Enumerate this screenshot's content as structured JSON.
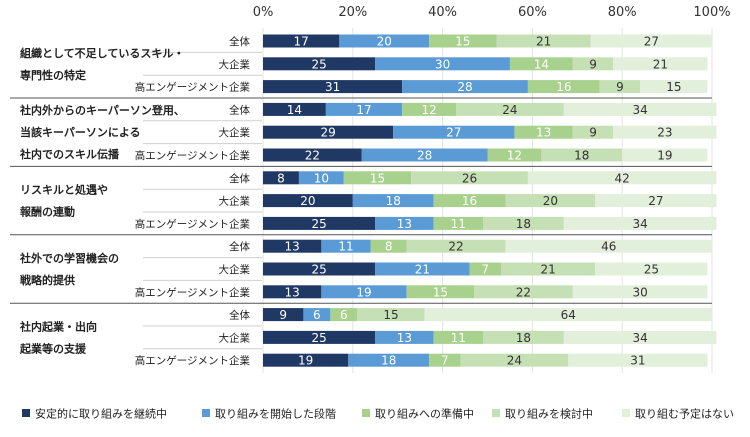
{
  "chart_data": {
    "type": "bar",
    "orientation": "horizontal",
    "stacked": true,
    "xlim": [
      0,
      100
    ],
    "x_ticks": [
      "0%",
      "20%",
      "40%",
      "60%",
      "80%",
      "100%"
    ],
    "legend_position": "bottom",
    "series": [
      {
        "name": "安定的に取り組みを継続中",
        "color": "#1f3864",
        "label_color": "#ffffff"
      },
      {
        "name": "取り組みを開始した段階",
        "color": "#5b9bd5",
        "label_color": "#ffffff"
      },
      {
        "name": "取り組みへの準備中",
        "color": "#a9d18e",
        "label_color": "#ffffff"
      },
      {
        "name": "取り組みを検討中",
        "color": "#c5e0b4",
        "label_color": "#333333"
      },
      {
        "name": "取り組む予定はない",
        "color": "#e2efda",
        "label_color": "#333333"
      }
    ],
    "groups": [
      {
        "label_lines": [
          "組織として不足しているスキル・",
          "専門性の特定"
        ],
        "rows": [
          {
            "label": "全体",
            "values": [
              17,
              20,
              15,
              21,
              27
            ]
          },
          {
            "label": "大企業",
            "values": [
              25,
              30,
              14,
              9,
              21
            ]
          },
          {
            "label": "高エンゲージメント企業",
            "values": [
              31,
              28,
              16,
              9,
              15
            ]
          }
        ]
      },
      {
        "label_lines": [
          "社内外からのキーパーソン登用、",
          "当該キーパーソンによる",
          "社内でのスキル伝播"
        ],
        "rows": [
          {
            "label": "全体",
            "values": [
              14,
              17,
              12,
              24,
              34
            ]
          },
          {
            "label": "大企業",
            "values": [
              29,
              27,
              13,
              9,
              23
            ]
          },
          {
            "label": "高エンゲージメント企業",
            "values": [
              22,
              28,
              12,
              18,
              19
            ]
          }
        ]
      },
      {
        "label_lines": [
          "リスキルと処遇や",
          "報酬の連動"
        ],
        "rows": [
          {
            "label": "全体",
            "values": [
              8,
              10,
              15,
              26,
              42
            ]
          },
          {
            "label": "大企業",
            "values": [
              20,
              18,
              16,
              20,
              27
            ]
          },
          {
            "label": "高エンゲージメント企業",
            "values": [
              25,
              13,
              11,
              18,
              34
            ]
          }
        ]
      },
      {
        "label_lines": [
          "社外での学習機会の",
          "戦略的提供"
        ],
        "rows": [
          {
            "label": "全体",
            "values": [
              13,
              11,
              8,
              22,
              46
            ]
          },
          {
            "label": "大企業",
            "values": [
              25,
              21,
              7,
              21,
              25
            ]
          },
          {
            "label": "高エンゲージメント企業",
            "values": [
              13,
              19,
              15,
              22,
              30
            ]
          }
        ]
      },
      {
        "label_lines": [
          "社内起業・出向",
          "起業等の支援"
        ],
        "rows": [
          {
            "label": "全体",
            "values": [
              9,
              6,
              6,
              15,
              64
            ]
          },
          {
            "label": "大企業",
            "values": [
              25,
              13,
              11,
              18,
              34
            ]
          },
          {
            "label": "高エンゲージメント企業",
            "values": [
              19,
              18,
              7,
              24,
              31
            ]
          }
        ]
      }
    ]
  }
}
